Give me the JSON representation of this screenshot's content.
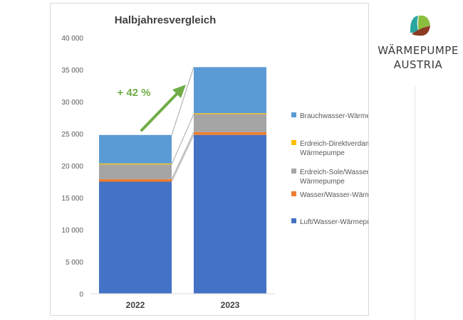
{
  "chart_data": {
    "type": "bar",
    "stacked": true,
    "title": "Halbjahresvergleich",
    "categories": [
      "2022",
      "2023"
    ],
    "ylim": [
      0,
      40000
    ],
    "yticks": [
      0,
      5000,
      10000,
      15000,
      20000,
      25000,
      30000,
      35000,
      40000
    ],
    "ytick_labels": [
      "0",
      "5 000",
      "10 000",
      "15 000",
      "20 000",
      "25 000",
      "30 000",
      "35 000",
      "40 000"
    ],
    "series": [
      {
        "name": "Luft/Wasser-Wärmepumpe",
        "values": [
          17500,
          24800
        ],
        "color": "#4472c4"
      },
      {
        "name": "Wasser/Wasser-Wärmepumpe",
        "values": [
          400,
          450
        ],
        "color": "#ed7d31"
      },
      {
        "name": "Erdreich-Sole/Wasser-Wärmepumpe",
        "values": [
          2300,
          2800
        ],
        "color": "#a5a5a5"
      },
      {
        "name": "Erdreich-Direktverdampfer-Wärmepumpe",
        "values": [
          150,
          150
        ],
        "color": "#ffc000"
      },
      {
        "name": "Brauchwasser-Wärmepumpe",
        "values": [
          4450,
          7200
        ],
        "color": "#5b9bd5"
      }
    ],
    "legend": {
      "placement": "right",
      "entries": [
        {
          "lines": [
            "Brauchwasser-Wärmepumpe"
          ],
          "color": "#5b9bd5"
        },
        {
          "lines": [
            "Erdreich-Direktverdampfer-",
            "Wärmepumpe"
          ],
          "color": "#ffc000"
        },
        {
          "lines": [
            "Erdreich-Sole/Wasser-",
            "Wärmepumpe"
          ],
          "color": "#a5a5a5"
        },
        {
          "lines": [
            "Wasser/Wasser-Wärmepumpe"
          ],
          "color": "#ed7d31"
        },
        {
          "lines": [
            "Luft/Wasser-Wärmepumpe"
          ],
          "color": "#4472c4"
        }
      ]
    },
    "annotation": {
      "text": "+ 42 %",
      "color": "#70ad47"
    },
    "grid": false
  },
  "logo": {
    "line1": "WÄRMEPUMPE",
    "line2": "AUSTRIA",
    "colors": [
      "#2ba5a0",
      "#8bbe3f",
      "#8a3b22"
    ]
  }
}
